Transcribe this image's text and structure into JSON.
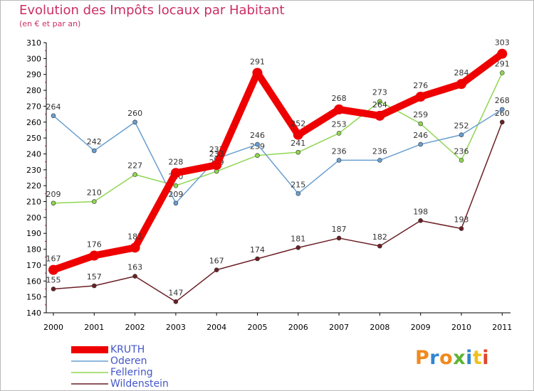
{
  "title": "Evolution des Impôts locaux par Habitant",
  "subtitle": "(en € et par an)",
  "chart_data": {
    "type": "line",
    "title": "Evolution des Impôts locaux par Habitant",
    "subtitle": "(en € et par an)",
    "xlabel": "",
    "ylabel": "",
    "ylim": [
      140,
      310
    ],
    "y_ticks": [
      140,
      150,
      160,
      170,
      180,
      190,
      200,
      210,
      220,
      230,
      240,
      250,
      260,
      270,
      280,
      290,
      300,
      310
    ],
    "categories": [
      "2000",
      "2001",
      "2002",
      "2003",
      "2004",
      "2005",
      "2006",
      "2007",
      "2008",
      "2009",
      "2010",
      "2011"
    ],
    "grid": false,
    "legend_position": "bottom-left",
    "series": [
      {
        "name": "Wildenstein",
        "color": "#6b1f25",
        "values": [
          155,
          157,
          163,
          147,
          167,
          174,
          181,
          187,
          182,
          198,
          193,
          260
        ]
      },
      {
        "name": "Fellering",
        "color": "#8fd651",
        "values": [
          209,
          210,
          227,
          220,
          229,
          239,
          241,
          253,
          273,
          259,
          236,
          291
        ]
      },
      {
        "name": "Oderen",
        "color": "#6a9fd0",
        "values": [
          264,
          242,
          260,
          209,
          237,
          246,
          215,
          236,
          236,
          246,
          252,
          268
        ]
      },
      {
        "name": "KRUTH",
        "color": "#ee0000",
        "values": [
          167,
          176,
          181,
          228,
          233,
          291,
          252,
          268,
          264,
          276,
          284,
          303
        ]
      }
    ]
  },
  "legend": [
    {
      "name": "KRUTH",
      "color": "#ee0000"
    },
    {
      "name": "Oderen",
      "color": "#6a9fd0"
    },
    {
      "name": "Fellering",
      "color": "#8fd651"
    },
    {
      "name": "Wildenstein",
      "color": "#6b1f25"
    }
  ],
  "logo": {
    "letters": [
      "P",
      "r",
      "o",
      "x",
      "i",
      "t",
      "i"
    ],
    "colors": [
      "#f08a1c",
      "#2f86d0",
      "#f08a1c",
      "#5cb531",
      "#2f86d0",
      "#f0c020",
      "#e0452b"
    ]
  }
}
